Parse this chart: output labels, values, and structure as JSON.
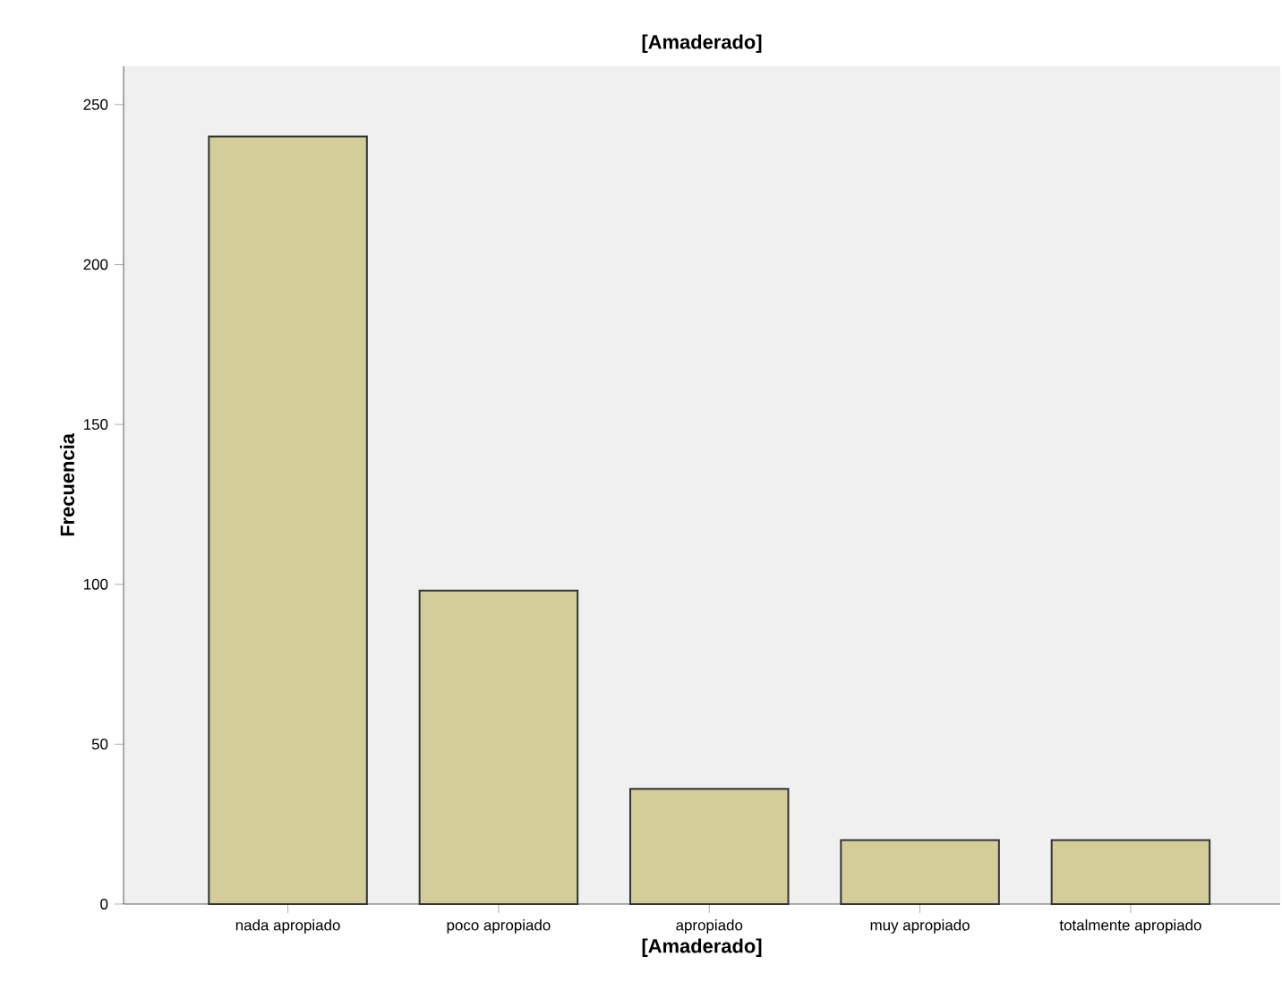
{
  "chart_data": {
    "type": "bar",
    "title": "[Amaderado]",
    "xlabel": "[Amaderado]",
    "ylabel": "Frecuencia",
    "categories": [
      "nada apropiado",
      "poco apropiado",
      "apropiado",
      "muy apropiado",
      "totalmente apropiado"
    ],
    "values": [
      240,
      98,
      36,
      20,
      20
    ],
    "color": "#d3ce99",
    "ylim": [
      0,
      262
    ],
    "yticks": [
      0,
      50,
      100,
      150,
      200,
      250
    ],
    "grid": false
  }
}
